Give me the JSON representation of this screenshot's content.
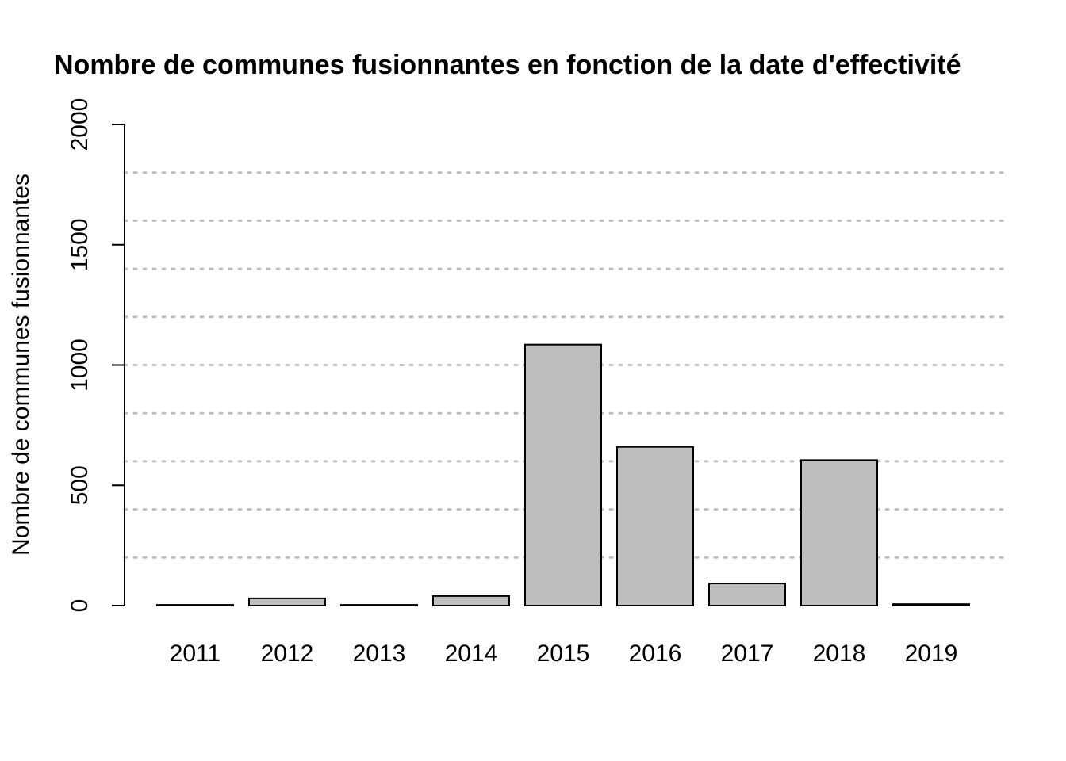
{
  "chart_data": {
    "type": "bar",
    "title": "Nombre de communes fusionnantes en fonction de la date d'effectivité",
    "xlabel": "",
    "ylabel": "Nombre de communes fusionnantes",
    "categories": [
      "2011",
      "2012",
      "2013",
      "2014",
      "2015",
      "2016",
      "2017",
      "2018",
      "2019"
    ],
    "values": [
      3,
      30,
      3,
      40,
      1085,
      660,
      92,
      605,
      6
    ],
    "ylim": [
      0,
      2000
    ],
    "yticks": [
      "0",
      "500",
      "1000",
      "1500",
      "2000"
    ],
    "grid": true,
    "grid_step": 200,
    "bar_color": "#bebebe",
    "legend": "none"
  }
}
